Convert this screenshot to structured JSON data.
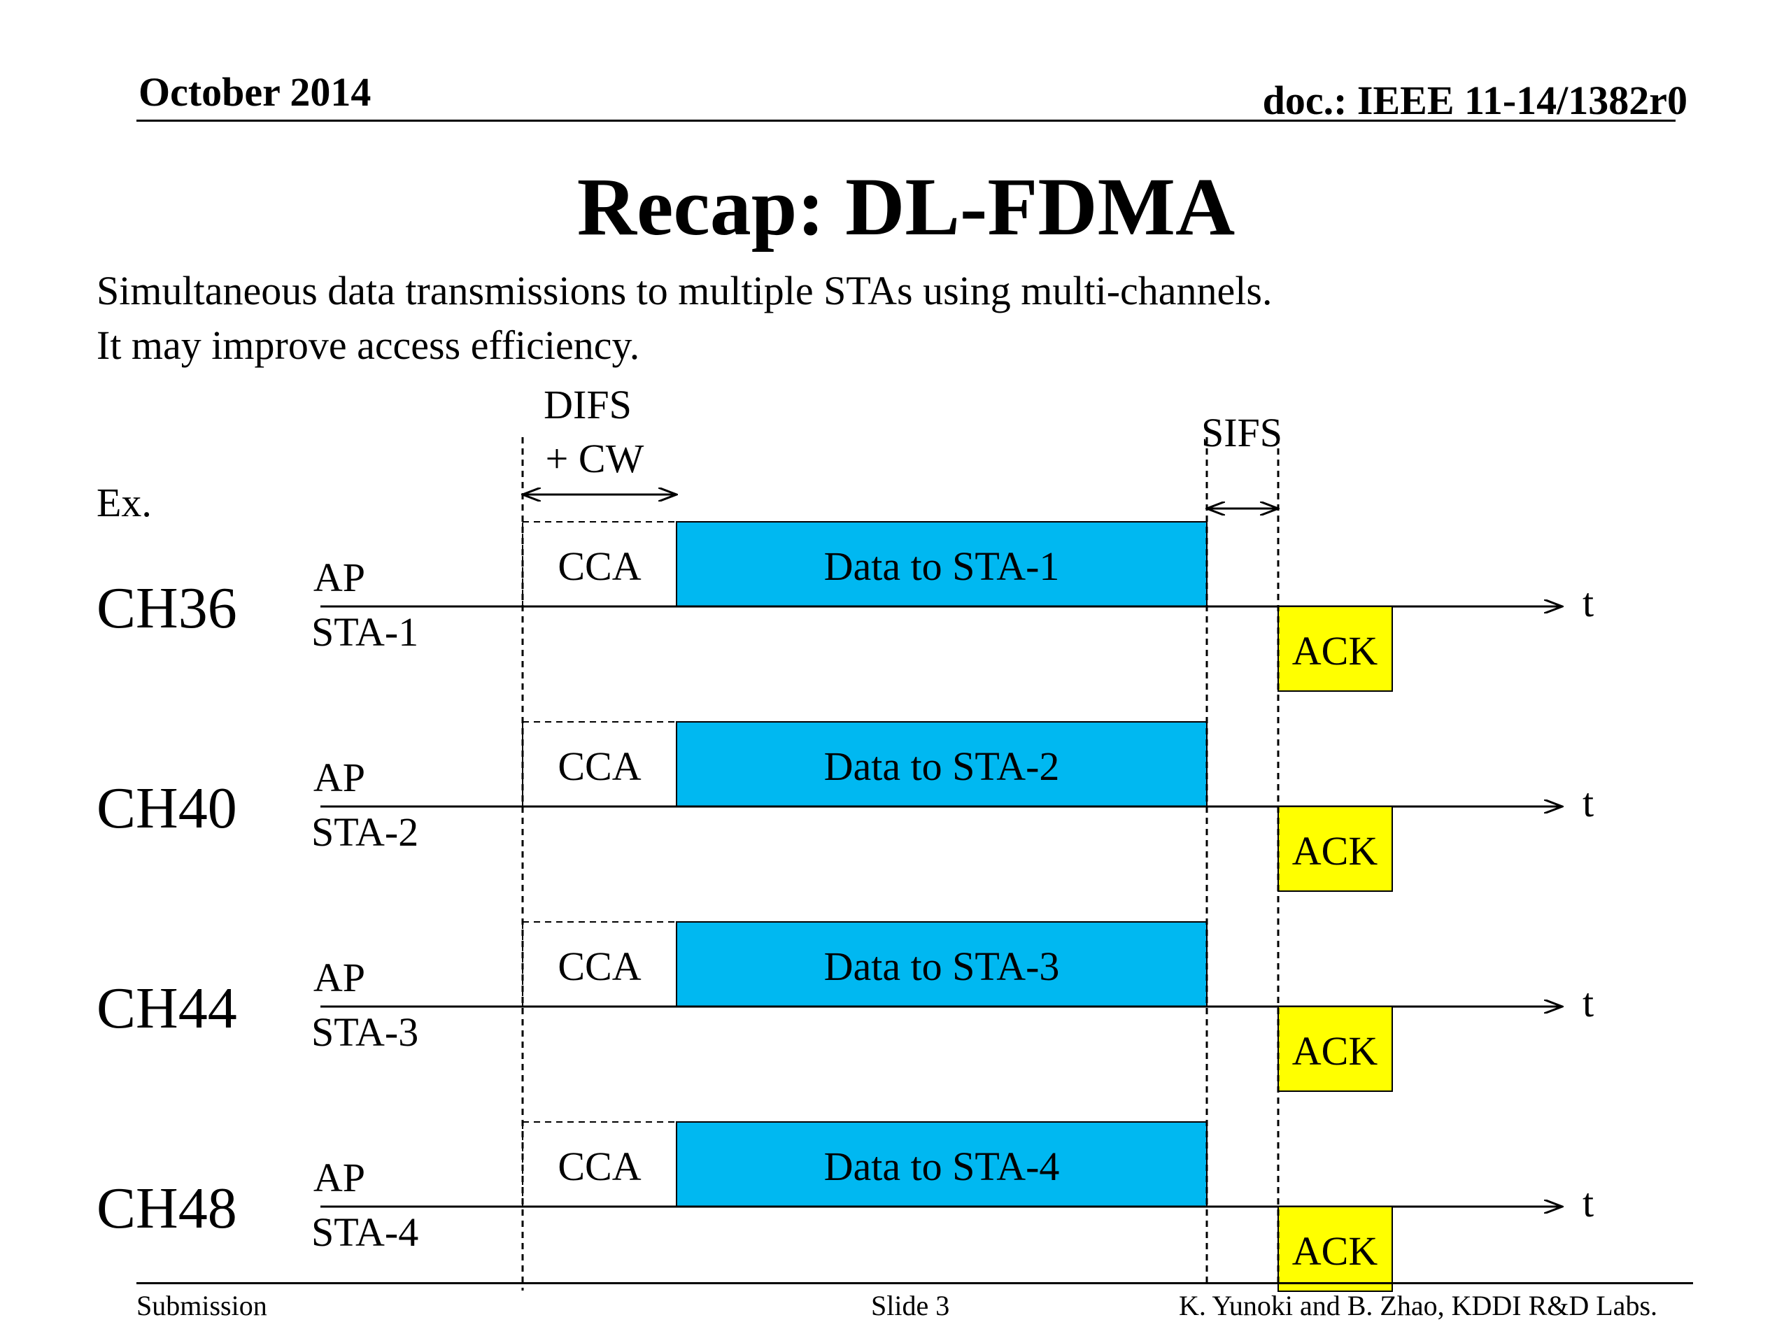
{
  "header": {
    "date": "October 2014",
    "doc_id": "doc.: IEEE 11-14/1382r0"
  },
  "title": "Recap: DL-FDMA",
  "body": {
    "line1": "Simultaneous data transmissions to multiple STAs using multi-channels.",
    "line2": "It may improve access efficiency."
  },
  "diagram": {
    "example_label": "Ex.",
    "difs_label_1": "DIFS",
    "difs_label_2": "+ CW",
    "sifs_label": "SIFS",
    "time_label": "t",
    "colors": {
      "data_fill": "#00b8f1",
      "ack_fill": "#ffff00"
    },
    "channels": [
      {
        "channel": "CH36",
        "ap_label": "AP",
        "sta_label": "STA-1",
        "cca_label": "CCA",
        "data_label": "Data to STA-1",
        "ack_label": "ACK"
      },
      {
        "channel": "CH40",
        "ap_label": "AP",
        "sta_label": "STA-2",
        "cca_label": "CCA",
        "data_label": "Data to STA-2",
        "ack_label": "ACK"
      },
      {
        "channel": "CH44",
        "ap_label": "AP",
        "sta_label": "STA-3",
        "cca_label": "CCA",
        "data_label": "Data to STA-3",
        "ack_label": "ACK"
      },
      {
        "channel": "CH48",
        "ap_label": "AP",
        "sta_label": "STA-4",
        "cca_label": "CCA",
        "data_label": "Data to STA-4",
        "ack_label": "ACK"
      }
    ]
  },
  "footer": {
    "left": "Submission",
    "center": "Slide 3",
    "right": "K. Yunoki and B. Zhao, KDDI R&D Labs."
  }
}
